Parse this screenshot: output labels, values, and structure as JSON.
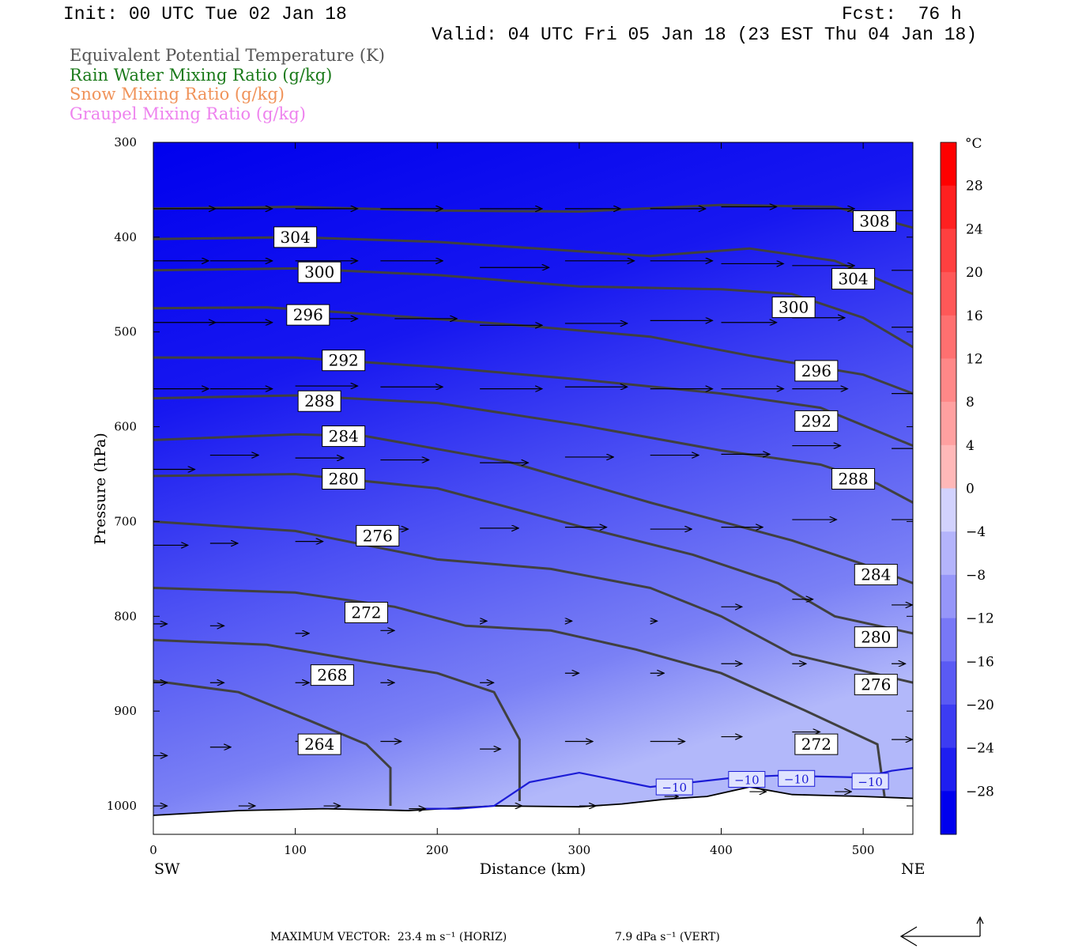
{
  "header": {
    "init": "Init: 00 UTC Tue 02 Jan 18",
    "fcst": "Fcst:  76 h",
    "valid": "Valid: 04 UTC Fri 05 Jan 18 (23 EST Thu 04 Jan 18)"
  },
  "legend": [
    {
      "text": "Equivalent Potential Temperature (K)",
      "color": "#555555"
    },
    {
      "text": "Rain Water Mixing Ratio (g/kg)",
      "color": "#1a7a1a"
    },
    {
      "text": "Snow Mixing Ratio (g/kg)",
      "color": "#f0935a"
    },
    {
      "text": "Graupel Mixing Ratio (g/kg)",
      "color": "#ee82ee"
    }
  ],
  "footer": {
    "max_vector": "MAXIMUM VECTOR:  23.4 m s⁻¹ (HORIZ)",
    "vert": "7.9 dPa s⁻¹ (VERT)"
  },
  "chart_data": {
    "type": "cross-section",
    "xlabel": "Distance (km)",
    "ylabel": "Pressure (hPa)",
    "xlim": [
      0,
      535
    ],
    "ylim": [
      1030,
      300
    ],
    "x_ticks": [
      0,
      100,
      200,
      300,
      400,
      500
    ],
    "y_ticks": [
      300,
      400,
      500,
      600,
      700,
      800,
      900,
      1000
    ],
    "x_end_labels": {
      "left": "SW",
      "right": "NE"
    },
    "colorbar": {
      "unit": "°C",
      "labels": [
        "28",
        "24",
        "20",
        "16",
        "12",
        "8",
        "4",
        "0",
        "−4",
        "−8",
        "−12",
        "−16",
        "−20",
        "−24",
        "−28"
      ],
      "min": -32,
      "max": 32,
      "step": 4
    },
    "theta_e_contours": [
      {
        "label": "308",
        "points": [
          [
            0,
            370
          ],
          [
            100,
            368
          ],
          [
            200,
            372
          ],
          [
            300,
            373
          ],
          [
            400,
            366
          ],
          [
            480,
            368
          ],
          [
            535,
            390
          ]
        ],
        "label_at": [
          [
            508,
            383
          ]
        ]
      },
      {
        "label": "304",
        "points": [
          [
            0,
            402
          ],
          [
            100,
            400
          ],
          [
            200,
            405
          ],
          [
            300,
            415
          ],
          [
            350,
            420
          ],
          [
            420,
            412
          ],
          [
            480,
            425
          ],
          [
            535,
            460
          ]
        ],
        "label_at": [
          [
            100,
            400
          ],
          [
            493,
            444
          ]
        ]
      },
      {
        "label": "300",
        "points": [
          [
            0,
            435
          ],
          [
            100,
            433
          ],
          [
            200,
            440
          ],
          [
            300,
            452
          ],
          [
            400,
            455
          ],
          [
            450,
            460
          ],
          [
            500,
            485
          ],
          [
            535,
            516
          ]
        ],
        "label_at": [
          [
            117,
            437
          ],
          [
            451,
            474
          ]
        ]
      },
      {
        "label": "296",
        "points": [
          [
            0,
            475
          ],
          [
            80,
            474
          ],
          [
            160,
            482
          ],
          [
            250,
            492
          ],
          [
            350,
            505
          ],
          [
            420,
            525
          ],
          [
            500,
            545
          ],
          [
            535,
            565
          ]
        ],
        "label_at": [
          [
            109,
            482
          ],
          [
            467,
            541
          ]
        ]
      },
      {
        "label": "292",
        "points": [
          [
            0,
            527
          ],
          [
            100,
            527
          ],
          [
            200,
            537
          ],
          [
            300,
            550
          ],
          [
            400,
            565
          ],
          [
            470,
            580
          ],
          [
            535,
            620
          ]
        ],
        "label_at": [
          [
            134,
            530
          ],
          [
            467,
            594
          ]
        ]
      },
      {
        "label": "288",
        "points": [
          [
            0,
            570
          ],
          [
            100,
            567
          ],
          [
            200,
            575
          ],
          [
            300,
            598
          ],
          [
            400,
            625
          ],
          [
            470,
            640
          ],
          [
            510,
            660
          ],
          [
            535,
            680
          ]
        ],
        "label_at": [
          [
            117,
            573
          ],
          [
            493,
            655
          ]
        ]
      },
      {
        "label": "284",
        "points": [
          [
            0,
            614
          ],
          [
            100,
            608
          ],
          [
            150,
            610
          ],
          [
            250,
            637
          ],
          [
            350,
            680
          ],
          [
            450,
            720
          ],
          [
            500,
            745
          ],
          [
            535,
            765
          ]
        ],
        "label_at": [
          [
            134,
            610
          ],
          [
            509,
            756
          ]
        ]
      },
      {
        "label": "280",
        "points": [
          [
            0,
            652
          ],
          [
            100,
            650
          ],
          [
            200,
            665
          ],
          [
            300,
            705
          ],
          [
            380,
            735
          ],
          [
            440,
            765
          ],
          [
            480,
            800
          ],
          [
            535,
            818
          ]
        ],
        "label_at": [
          [
            134,
            655
          ],
          [
            509,
            822
          ]
        ]
      },
      {
        "label": "276",
        "points": [
          [
            0,
            700
          ],
          [
            100,
            710
          ],
          [
            200,
            740
          ],
          [
            280,
            750
          ],
          [
            350,
            770
          ],
          [
            400,
            800
          ],
          [
            450,
            840
          ],
          [
            535,
            870
          ]
        ],
        "label_at": [
          [
            158,
            715
          ],
          [
            509,
            872
          ]
        ]
      },
      {
        "label": "272",
        "points": [
          [
            0,
            770
          ],
          [
            100,
            775
          ],
          [
            170,
            790
          ],
          [
            220,
            810
          ],
          [
            280,
            815
          ],
          [
            340,
            835
          ],
          [
            400,
            860
          ],
          [
            460,
            900
          ],
          [
            510,
            935
          ],
          [
            515,
            990
          ]
        ],
        "label_at": [
          [
            150,
            796
          ],
          [
            467,
            935
          ]
        ]
      },
      {
        "label": "268",
        "points": [
          [
            0,
            825
          ],
          [
            80,
            830
          ],
          [
            150,
            848
          ],
          [
            200,
            860
          ],
          [
            240,
            880
          ],
          [
            258,
            930
          ],
          [
            258,
            995
          ]
        ],
        "label_at": [
          [
            126,
            862
          ]
        ]
      },
      {
        "label": "264",
        "points": [
          [
            0,
            868
          ],
          [
            60,
            880
          ],
          [
            110,
            910
          ],
          [
            150,
            935
          ],
          [
            167,
            960
          ],
          [
            167,
            1000
          ]
        ],
        "label_at": [
          [
            117,
            935
          ]
        ]
      }
    ],
    "temperature_contour_minus10": {
      "label": "−10",
      "points": [
        [
          190,
          1003
        ],
        [
          215,
          1003
        ],
        [
          240,
          1000
        ],
        [
          265,
          975
        ],
        [
          300,
          965
        ],
        [
          350,
          980
        ],
        [
          410,
          970
        ],
        [
          440,
          968
        ],
        [
          500,
          970
        ],
        [
          520,
          963
        ],
        [
          535,
          960
        ]
      ],
      "label_at": [
        [
          367,
          980
        ],
        [
          418,
          972
        ],
        [
          453,
          971
        ],
        [
          505,
          974
        ]
      ]
    },
    "terrain": [
      [
        0,
        1010
      ],
      [
        60,
        1005
      ],
      [
        120,
        1003
      ],
      [
        180,
        1005
      ],
      [
        240,
        1000
      ],
      [
        300,
        1001
      ],
      [
        330,
        998
      ],
      [
        360,
        993
      ],
      [
        390,
        990
      ],
      [
        420,
        980
      ],
      [
        450,
        988
      ],
      [
        500,
        990
      ],
      [
        535,
        992
      ]
    ],
    "wind_vectors": [
      [
        0,
        370,
        45
      ],
      [
        40,
        370,
        45
      ],
      [
        100,
        370,
        45
      ],
      [
        160,
        370,
        45
      ],
      [
        230,
        370,
        45
      ],
      [
        290,
        370,
        40
      ],
      [
        350,
        370,
        40
      ],
      [
        400,
        368,
        40
      ],
      [
        450,
        370,
        45
      ],
      [
        520,
        372,
        40
      ],
      [
        0,
        425,
        40
      ],
      [
        40,
        425,
        45
      ],
      [
        100,
        425,
        45
      ],
      [
        160,
        425,
        45
      ],
      [
        230,
        432,
        50
      ],
      [
        290,
        425,
        50
      ],
      [
        350,
        425,
        45
      ],
      [
        400,
        428,
        45
      ],
      [
        450,
        430,
        45
      ],
      [
        520,
        435,
        40
      ],
      [
        0,
        490,
        45
      ],
      [
        40,
        490,
        45
      ],
      [
        100,
        486,
        45
      ],
      [
        170,
        486,
        45
      ],
      [
        230,
        493,
        45
      ],
      [
        290,
        491,
        45
      ],
      [
        350,
        488,
        45
      ],
      [
        400,
        490,
        40
      ],
      [
        450,
        485,
        38
      ],
      [
        520,
        495,
        35
      ],
      [
        0,
        560,
        40
      ],
      [
        40,
        560,
        45
      ],
      [
        100,
        557,
        45
      ],
      [
        160,
        558,
        45
      ],
      [
        230,
        560,
        45
      ],
      [
        290,
        558,
        45
      ],
      [
        350,
        560,
        45
      ],
      [
        400,
        560,
        45
      ],
      [
        450,
        560,
        40
      ],
      [
        520,
        565,
        40
      ],
      [
        0,
        645,
        30
      ],
      [
        40,
        630,
        35
      ],
      [
        100,
        633,
        35
      ],
      [
        160,
        635,
        35
      ],
      [
        230,
        638,
        35
      ],
      [
        290,
        632,
        35
      ],
      [
        350,
        630,
        35
      ],
      [
        400,
        629,
        35
      ],
      [
        450,
        620,
        35
      ],
      [
        520,
        623,
        35
      ],
      [
        0,
        725,
        25
      ],
      [
        40,
        723,
        20
      ],
      [
        100,
        721,
        20
      ],
      [
        160,
        708,
        20
      ],
      [
        230,
        707,
        28
      ],
      [
        290,
        706,
        30
      ],
      [
        350,
        708,
        30
      ],
      [
        400,
        706,
        30
      ],
      [
        450,
        698,
        32
      ],
      [
        520,
        698,
        30
      ],
      [
        0,
        808,
        10
      ],
      [
        40,
        810,
        10
      ],
      [
        100,
        818,
        10
      ],
      [
        160,
        815,
        10
      ],
      [
        230,
        805,
        5
      ],
      [
        290,
        805,
        5
      ],
      [
        350,
        805,
        5
      ],
      [
        400,
        790,
        15
      ],
      [
        450,
        782,
        15
      ],
      [
        520,
        788,
        15
      ],
      [
        0,
        870,
        10
      ],
      [
        40,
        870,
        10
      ],
      [
        100,
        870,
        10
      ],
      [
        160,
        870,
        10
      ],
      [
        230,
        870,
        10
      ],
      [
        290,
        860,
        10
      ],
      [
        350,
        860,
        10
      ],
      [
        400,
        850,
        15
      ],
      [
        450,
        850,
        10
      ],
      [
        520,
        850,
        10
      ],
      [
        0,
        947,
        10
      ],
      [
        40,
        938,
        15
      ],
      [
        100,
        932,
        15
      ],
      [
        160,
        932,
        15
      ],
      [
        230,
        940,
        15
      ],
      [
        290,
        932,
        20
      ],
      [
        350,
        932,
        25
      ],
      [
        400,
        927,
        15
      ],
      [
        450,
        922,
        20
      ],
      [
        520,
        930,
        15
      ],
      [
        0,
        1000,
        10
      ],
      [
        60,
        1000,
        12
      ],
      [
        120,
        1000,
        12
      ],
      [
        180,
        1003,
        12
      ],
      [
        250,
        1000,
        10
      ],
      [
        300,
        1000,
        12
      ],
      [
        360,
        990,
        10
      ],
      [
        420,
        985,
        12
      ],
      [
        480,
        985,
        12
      ]
    ]
  },
  "colors": {
    "theta_e": "#404040",
    "minus10": "#1c1cd6",
    "fill_top": "#0000ee",
    "fill_bottom": "#a0a8f8"
  }
}
